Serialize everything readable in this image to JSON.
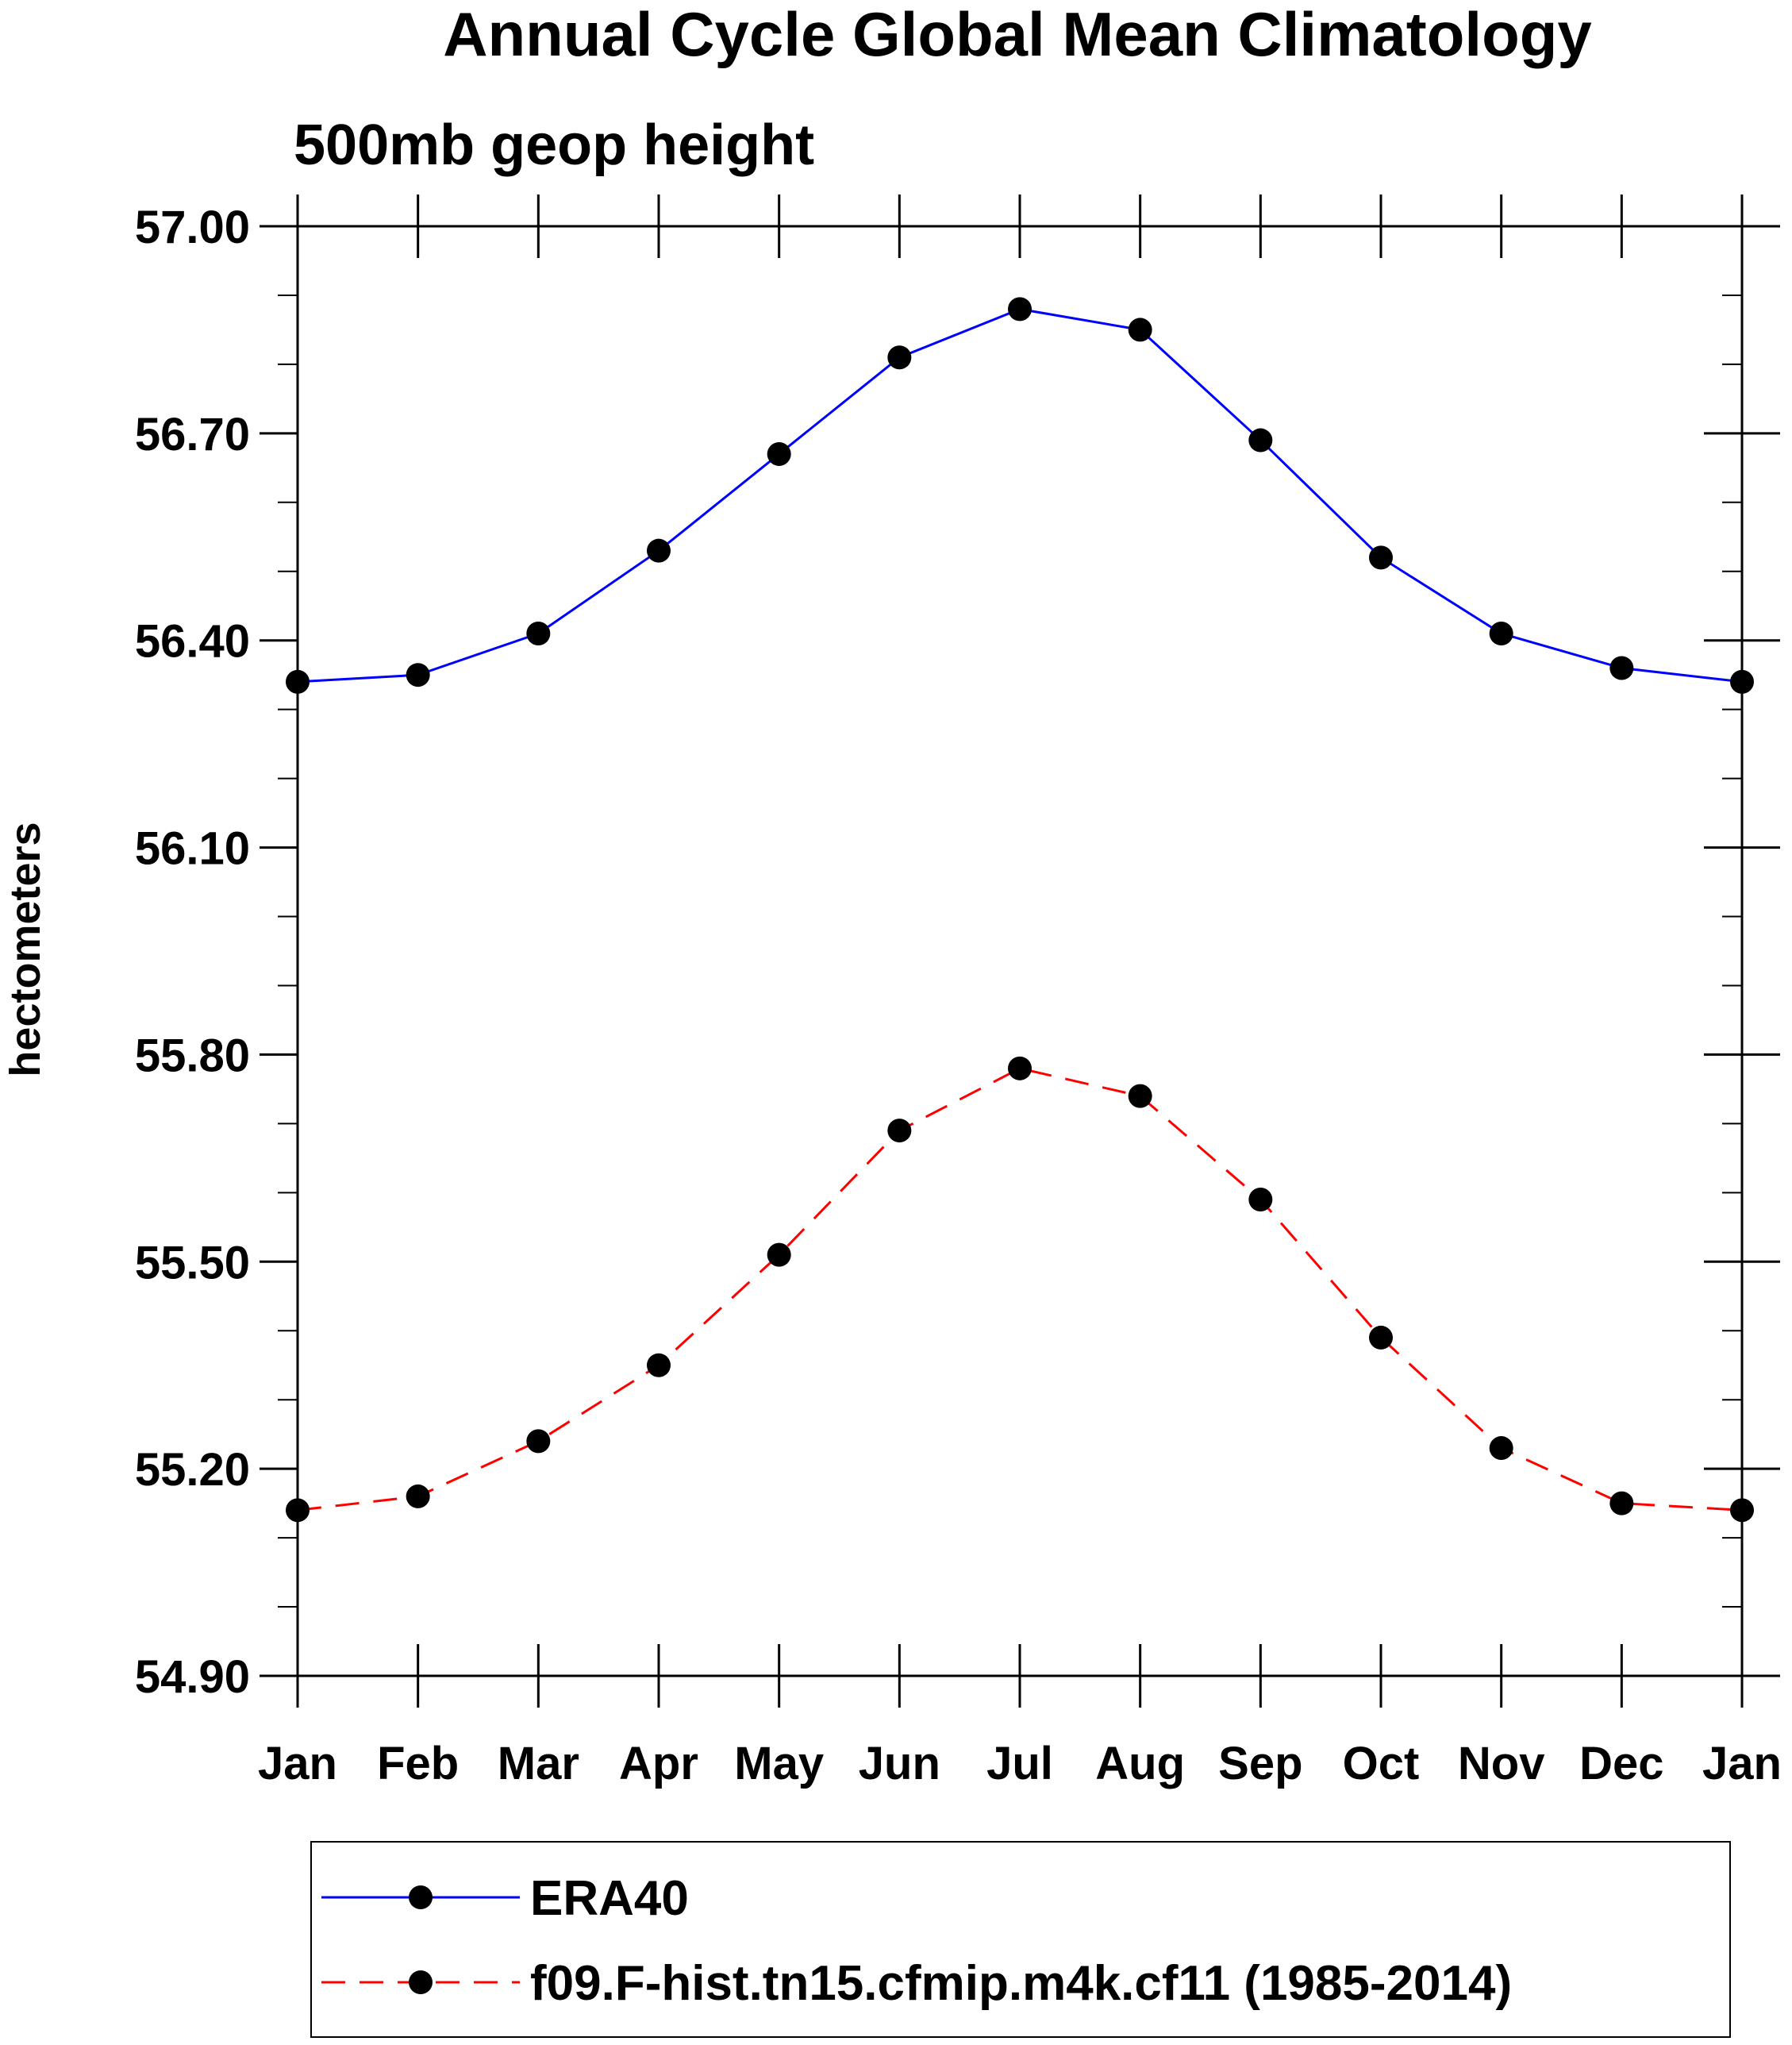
{
  "chart_data": {
    "type": "line",
    "title": "Annual Cycle Global Mean Climatology",
    "subtitle": "500mb geop height",
    "ylabel": "hectometers",
    "xlabel": "",
    "categories": [
      "Jan",
      "Feb",
      "Mar",
      "Apr",
      "May",
      "Jun",
      "Jul",
      "Aug",
      "Sep",
      "Oct",
      "Nov",
      "Dec",
      "Jan"
    ],
    "ylim": [
      54.9,
      57.0
    ],
    "yticks": [
      "54.90",
      "55.20",
      "55.50",
      "55.80",
      "56.10",
      "56.40",
      "56.70",
      "57.00"
    ],
    "grid": false,
    "legend_position": "bottom",
    "series": [
      {
        "name": "ERA40",
        "color": "#0000ff",
        "dash": "solid",
        "marker": "filled-circle",
        "values": [
          56.34,
          56.35,
          56.41,
          56.53,
          56.67,
          56.81,
          56.88,
          56.85,
          56.69,
          56.52,
          56.41,
          56.36,
          56.34
        ]
      },
      {
        "name": "f09.F-hist.tn15.cfmip.m4k.cf11 (1985-2014)",
        "color": "#ff0000",
        "dash": "dashed",
        "marker": "filled-circle",
        "values": [
          55.14,
          55.16,
          55.24,
          55.35,
          55.51,
          55.69,
          55.78,
          55.74,
          55.59,
          55.39,
          55.23,
          55.15,
          55.14
        ]
      }
    ]
  }
}
